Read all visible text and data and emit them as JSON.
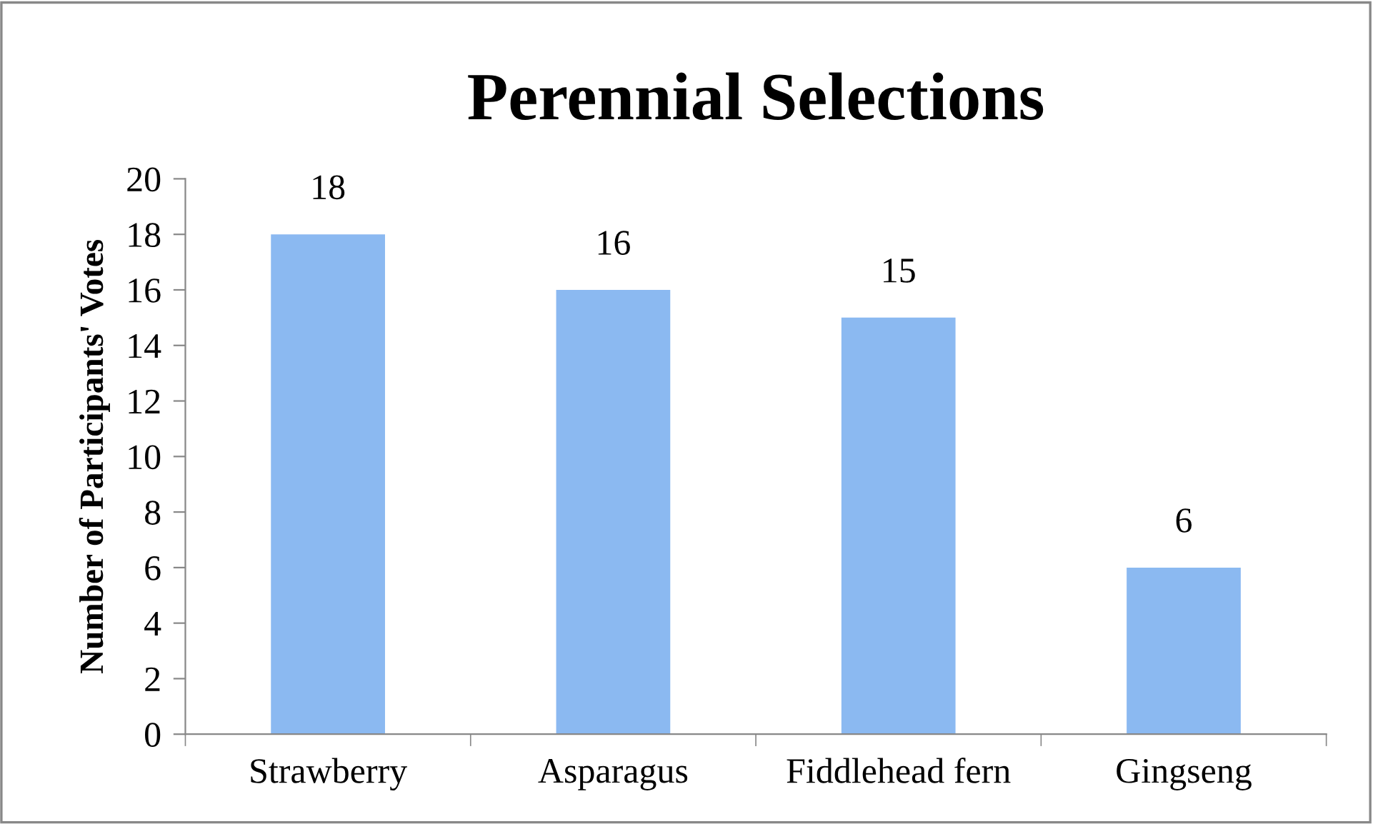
{
  "chart_data": {
    "type": "bar",
    "title": "Perennial Selections",
    "ylabel": "Number of Participants' Votes",
    "categories": [
      "Strawberry",
      "Asparagus",
      "Fiddlehead fern",
      "Gingseng"
    ],
    "values": [
      18,
      16,
      15,
      6
    ],
    "color": "#8bb9f1",
    "ylim": [
      0,
      20
    ],
    "yticks": [
      0,
      2,
      4,
      6,
      8,
      10,
      12,
      14,
      16,
      18,
      20
    ],
    "grid": false,
    "data_labels": true
  }
}
